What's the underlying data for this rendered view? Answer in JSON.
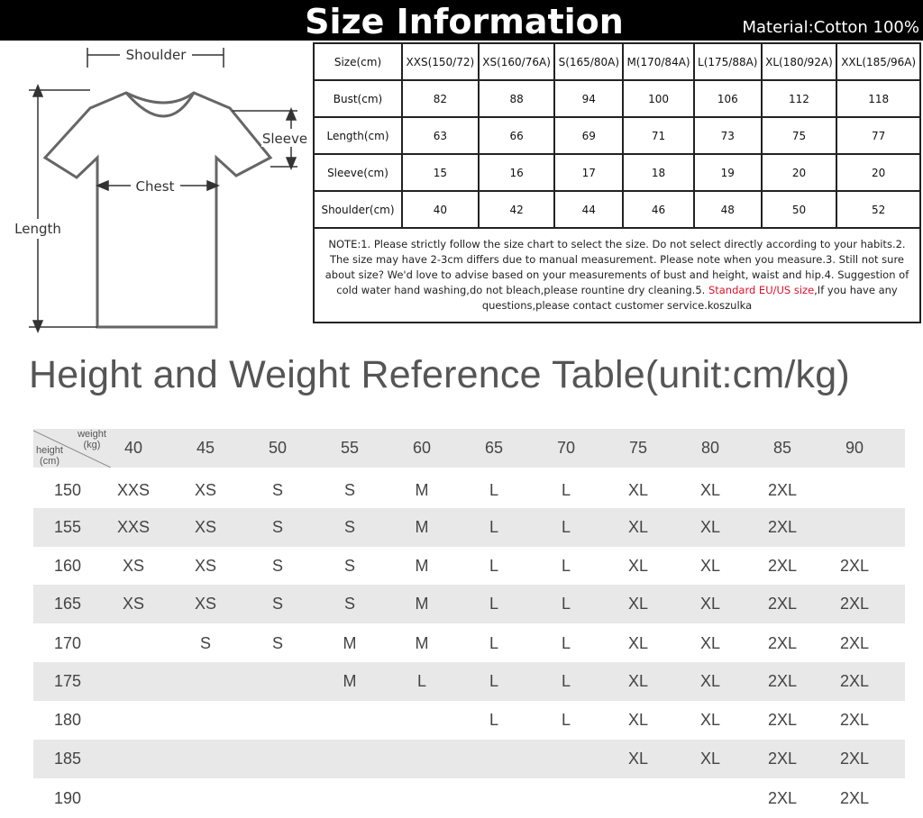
{
  "header": {
    "title": "Size Information",
    "material": "Material:Cotton 100%"
  },
  "diagram": {
    "shoulder": "Shoulder",
    "sleeve": "Sleeve",
    "chest": "Chest",
    "length": "Length"
  },
  "size_table": {
    "columns": [
      "Size(cm)",
      "XXS(150/72)",
      "XS(160/76A)",
      "S(165/80A)",
      "M(170/84A)",
      "L(175/88A)",
      "XL(180/92A)",
      "XXL(185/96A)"
    ],
    "rows": [
      [
        "Bust(cm)",
        "82",
        "88",
        "94",
        "100",
        "106",
        "112",
        "118"
      ],
      [
        "Length(cm)",
        "63",
        "66",
        "69",
        "71",
        "73",
        "75",
        "77"
      ],
      [
        "Sleeve(cm)",
        "15",
        "16",
        "17",
        "18",
        "19",
        "20",
        "20"
      ],
      [
        "Shoulder(cm)",
        "40",
        "42",
        "44",
        "46",
        "48",
        "50",
        "52"
      ]
    ],
    "note_before": "NOTE:1. Please strictly follow the size chart to select the size. Do not select directly according to your habits.2. The size may have 2-3cm differs due to manual measurement. Please note when you measure.3. Still not sure about size? We'd love to advise based on your measurements of bust and height, waist and hip.4. Suggestion of cold water hand washing,do not bleach,please rountine dry cleaning.5. ",
    "note_highlight": "Standard EU/US size",
    "note_after": ",If you have any questions,please contact customer service.koszulka",
    "highlight_color": "#e0102a"
  },
  "hw_table": {
    "title": "Height and Weight Reference Table(unit:cm/kg)",
    "corner_weight": "weight (kg)",
    "corner_height": "height (cm)",
    "weights": [
      "40",
      "45",
      "50",
      "55",
      "60",
      "65",
      "70",
      "75",
      "80",
      "85",
      "90"
    ],
    "rows": [
      {
        "height": "150",
        "sizes": [
          "XXS",
          "XS",
          "S",
          "S",
          "M",
          "L",
          "L",
          "XL",
          "XL",
          "2XL",
          ""
        ]
      },
      {
        "height": "155",
        "sizes": [
          "XXS",
          "XS",
          "S",
          "S",
          "M",
          "L",
          "L",
          "XL",
          "XL",
          "2XL",
          ""
        ]
      },
      {
        "height": "160",
        "sizes": [
          "XS",
          "XS",
          "S",
          "S",
          "M",
          "L",
          "L",
          "XL",
          "XL",
          "2XL",
          "2XL"
        ]
      },
      {
        "height": "165",
        "sizes": [
          "XS",
          "XS",
          "S",
          "S",
          "M",
          "L",
          "L",
          "XL",
          "XL",
          "2XL",
          "2XL"
        ]
      },
      {
        "height": "170",
        "sizes": [
          "",
          "S",
          "S",
          "M",
          "M",
          "L",
          "L",
          "XL",
          "XL",
          "2XL",
          "2XL"
        ]
      },
      {
        "height": "175",
        "sizes": [
          "",
          "",
          "",
          "M",
          "L",
          "L",
          "L",
          "XL",
          "XL",
          "2XL",
          "2XL"
        ]
      },
      {
        "height": "180",
        "sizes": [
          "",
          "",
          "",
          "",
          "",
          "L",
          "L",
          "XL",
          "XL",
          "2XL",
          "2XL"
        ]
      },
      {
        "height": "185",
        "sizes": [
          "",
          "",
          "",
          "",
          "",
          "",
          "",
          "XL",
          "XL",
          "2XL",
          "2XL"
        ]
      },
      {
        "height": "190",
        "sizes": [
          "",
          "",
          "",
          "",
          "",
          "",
          "",
          "",
          "",
          "2XL",
          "2XL"
        ]
      }
    ]
  }
}
